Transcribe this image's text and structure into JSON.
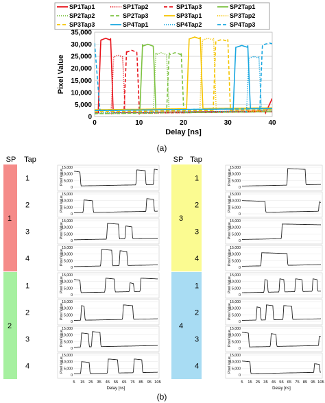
{
  "figure": {
    "panel_a_label": "(a)",
    "panel_b_label": "(b)"
  },
  "colors": {
    "sp1": "#e8141c",
    "sp2": "#7dc242",
    "sp3": "#f5c400",
    "sp4": "#1aa7e0",
    "sp1_bg": "#f58b89",
    "sp2_bg": "#a6f0a0",
    "sp3_bg": "#fbfb91",
    "sp4_bg": "#a8dcf3",
    "small_line": "#222222",
    "grid": "#d0d0d0"
  },
  "chart_data": [
    {
      "type": "line",
      "panel": "a",
      "xlabel": "Delay [ns]",
      "ylabel": "Pixel Value",
      "xlim": [
        0,
        40
      ],
      "ylim": [
        0,
        35000
      ],
      "xticks": [
        0,
        10,
        20,
        30,
        40
      ],
      "yticks": [
        0,
        5000,
        10000,
        15000,
        20000,
        25000,
        30000,
        35000
      ],
      "ytick_labels": [
        "0",
        "5,000",
        "10,000",
        "15,000",
        "20,000",
        "25,000",
        "30,000",
        "35,000"
      ],
      "grid": "horizontal",
      "legend": "top",
      "series": [
        {
          "name": "SP1Tap1",
          "sp": 1,
          "style": "solid",
          "rise": 1.4,
          "fall": 3.6,
          "peak": 32500,
          "base": 1500,
          "tailRise": 38.5
        },
        {
          "name": "SP1Tap2",
          "sp": 1,
          "style": "dotted",
          "rise": 4.3,
          "fall": 6.3,
          "peak": 25500,
          "base": 1200,
          "tailRise": null
        },
        {
          "name": "SP1Tap3",
          "sp": 1,
          "style": "dashed",
          "rise": 7.2,
          "fall": 9.5,
          "peak": 27500,
          "base": 1200,
          "tailRise": null
        },
        {
          "name": "SP2Tap1",
          "sp": 2,
          "style": "solid",
          "rise": 10.8,
          "fall": 13.2,
          "peak": 30000,
          "base": 2500,
          "tailRise": null
        },
        {
          "name": "SP2Tap2",
          "sp": 2,
          "style": "dotted",
          "rise": 13.8,
          "fall": 16.2,
          "peak": 26500,
          "base": 1200,
          "tailRise": null
        },
        {
          "name": "SP2Tap3",
          "sp": 2,
          "style": "dashed",
          "rise": 16.8,
          "fall": 19.5,
          "peak": 26500,
          "base": 1200,
          "tailRise": null
        },
        {
          "name": "SP3Tap1",
          "sp": 3,
          "style": "solid",
          "rise": 21.3,
          "fall": 23.8,
          "peak": 33000,
          "base": 2800,
          "tailRise": null
        },
        {
          "name": "SP3Tap2",
          "sp": 3,
          "style": "dotted",
          "rise": 24.3,
          "fall": 26.8,
          "peak": 32500,
          "base": 1500,
          "tailRise": null
        },
        {
          "name": "SP3Tap3",
          "sp": 3,
          "style": "dashed",
          "rise": 27.3,
          "fall": 30.0,
          "peak": 32000,
          "base": 2000,
          "tailRise": null
        },
        {
          "name": "SP4Tap1",
          "sp": 4,
          "style": "solid",
          "rise": 31.8,
          "fall": 34.5,
          "peak": 29500,
          "base": 2500,
          "tailRise": null
        },
        {
          "name": "SP4Tap2",
          "sp": 4,
          "style": "dotted",
          "rise": 34.8,
          "fall": 37.0,
          "peak": 25000,
          "base": 1500,
          "tailRise": null
        },
        {
          "name": "SP4Tap3",
          "sp": 4,
          "style": "dashed",
          "rise": 37.8,
          "fall": 41.0,
          "peak": 30500,
          "base": 2500,
          "tailRise": null,
          "startHigh": 30500,
          "startFall": 1.2
        }
      ]
    },
    {
      "type": "line",
      "panel": "b",
      "sp_header": "SP",
      "tap_header": "Tap",
      "xlabel": "Delay [ns]",
      "ylabel": "Pixel Value",
      "xlim": [
        5,
        105
      ],
      "ylim": [
        0,
        15000
      ],
      "xticks": [
        5,
        15,
        25,
        35,
        45,
        55,
        65,
        75,
        85,
        95,
        105
      ],
      "yticks": [
        0,
        5000,
        10000,
        15000
      ],
      "ytick_labels": [
        "0",
        "5,000",
        "10,000",
        "15,000"
      ],
      "groups": [
        {
          "sp": "1",
          "taps": [
            {
              "tap": "1",
              "pulses": [
                [
                  5,
                  12,
                  12000
                ],
                [
                  80,
                  90,
                  13000
                ],
                [
                  101,
                  106,
                  13500
                ]
              ],
              "base": 800
            },
            {
              "tap": "2",
              "pulses": [
                [
                  17,
                  27,
                  10500
                ],
                [
                  92,
                  100,
                  11500
                ]
              ],
              "base": 800
            },
            {
              "tap": "3",
              "pulses": [
                [
                  45,
                  58,
                  13000
                ],
                [
                  67,
                  74,
                  11000
                ]
              ],
              "base": 600
            },
            {
              "tap": "4",
              "pulses": [
                [
                  38,
                  50,
                  13500
                ],
                [
                  60,
                  68,
                  12500
                ]
              ],
              "base": 600
            }
          ]
        },
        {
          "sp": "2",
          "taps": [
            {
              "tap": "1",
              "pulses": [
                [
                  5,
                  12,
                  11500
                ],
                [
                  43,
                  53,
                  12500
                ],
                [
                  72,
                  76,
                  9000
                ],
                [
                  85,
                  106,
                  12500
                ]
              ],
              "base": 1500
            },
            {
              "tap": "2",
              "pulses": [
                [
                  14,
                  17,
                  12000
                ],
                [
                  64,
                  75,
                  12500
                ]
              ],
              "base": 800
            },
            {
              "tap": "3",
              "pulses": [
                [
                  14,
                  22,
                  11500
                ],
                [
                  27,
                  36,
                  12500
                ]
              ],
              "base": 800
            },
            {
              "tap": "4",
              "pulses": [
                [
                  14,
                  23,
                  10000
                ],
                [
                  46,
                  57,
                  12000
                ],
                [
                  77,
                  86,
                  12000
                ]
              ],
              "base": 800
            }
          ]
        },
        {
          "sp": "3",
          "taps": [
            {
              "tap": "1",
              "pulses": [
                [
                  63,
                  85,
                  14000
                ]
              ],
              "base": 800
            },
            {
              "tap": "2",
              "pulses": [
                [
                  5,
                  34,
                  10000
                ],
                [
                  103,
                  106,
                  9000
                ]
              ],
              "base": 800
            },
            {
              "tap": "3",
              "pulses": [
                [
                  56,
                  106,
                  12500
                ]
              ],
              "base": 800
            },
            {
              "tap": "4",
              "pulses": [
                [
                  30,
                  62,
                  11000
                ]
              ],
              "base": 800
            }
          ]
        },
        {
          "sp": "4",
          "taps": [
            {
              "tap": "1",
              "pulses": [
                [
                  34,
                  37,
                  11500
                ],
                [
                  53,
                  58,
                  12000
                ],
                [
                  73,
                  81,
                  12000
                ],
                [
                  95,
                  100,
                  12000
                ]
              ],
              "base": 1500
            },
            {
              "tap": "2",
              "pulses": [
                [
                  24,
                  28,
                  11000
                ],
                [
                  36,
                  44,
                  12500
                ],
                [
                  58,
                  68,
                  12000
                ]
              ],
              "base": 800
            },
            {
              "tap": "3",
              "pulses": [
                [
                  5,
                  13,
                  12000
                ],
                [
                  42,
                  48,
                  11000
                ],
                [
                  103,
                  106,
                  9000
                ]
              ],
              "base": 800
            },
            {
              "tap": "4",
              "pulses": [
                [
                  5,
                  15,
                  10500
                ],
                [
                  97,
                  103,
                  8500
                ]
              ],
              "base": 800
            }
          ]
        }
      ]
    }
  ]
}
